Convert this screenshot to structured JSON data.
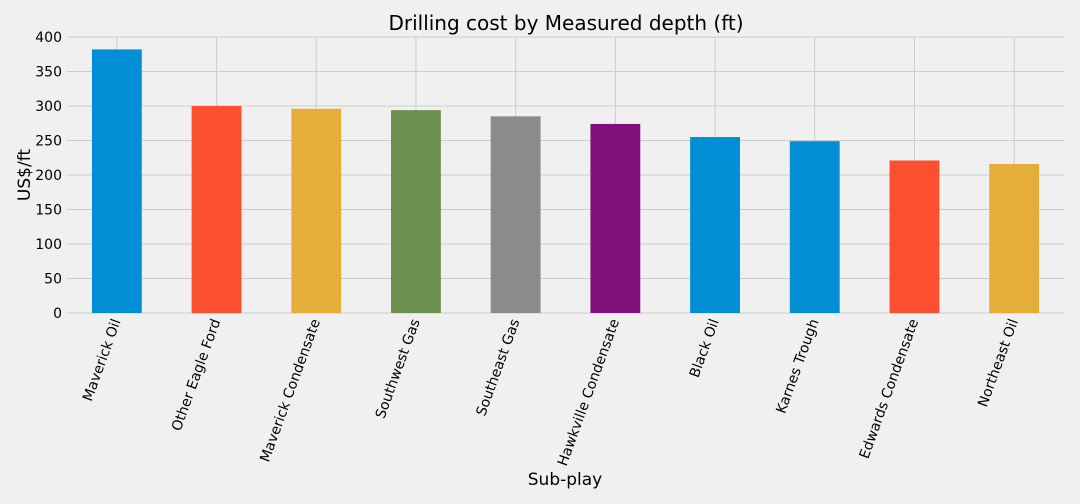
{
  "chart_data": {
    "type": "bar",
    "title": "Drilling cost by Measured depth (ft)",
    "xlabel": "Sub-play",
    "ylabel": "US$/ft",
    "categories": [
      "Maverick Oil",
      "Other Eagle Ford",
      "Maverick Condensate",
      "Southwest Gas",
      "Southeast Gas",
      "Hawkville Condensate",
      "Black Oil",
      "Karnes Trough",
      "Edwards Condensate",
      "Northeast Oil"
    ],
    "values": [
      382,
      300,
      296,
      294,
      285,
      274,
      255,
      249,
      221,
      216
    ],
    "colors": [
      "#008fd5",
      "#fc4f30",
      "#e5ae38",
      "#6d904f",
      "#8b8b8b",
      "#810f7c",
      "#008fd5",
      "#008fd5",
      "#fc4f30",
      "#e5ae38"
    ],
    "ylim": [
      0,
      400
    ],
    "yticks": [
      0,
      50,
      100,
      150,
      200,
      250,
      300,
      350,
      400
    ],
    "grid": true,
    "legend": "none"
  }
}
